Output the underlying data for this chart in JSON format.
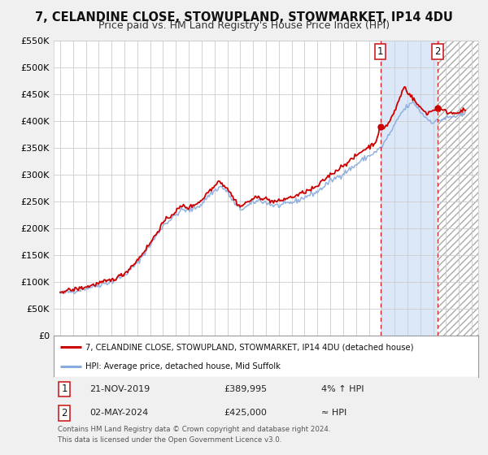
{
  "title": "7, CELANDINE CLOSE, STOWUPLAND, STOWMARKET, IP14 4DU",
  "subtitle": "Price paid vs. HM Land Registry's House Price Index (HPI)",
  "ylim": [
    0,
    550000
  ],
  "xlim_start": 1994.5,
  "xlim_end": 2027.5,
  "yticks": [
    0,
    50000,
    100000,
    150000,
    200000,
    250000,
    300000,
    350000,
    400000,
    450000,
    500000,
    550000
  ],
  "ytick_labels": [
    "£0",
    "£50K",
    "£100K",
    "£150K",
    "£200K",
    "£250K",
    "£300K",
    "£350K",
    "£400K",
    "£450K",
    "£500K",
    "£550K"
  ],
  "bg_color": "#f0f0f0",
  "plot_bg_color": "#ffffff",
  "grid_color": "#cccccc",
  "red_line_color": "#cc0000",
  "blue_line_color": "#88aadd",
  "shade_color": "#dce8f8",
  "hatch_color": "#cccccc",
  "vline1_x": 2019.9,
  "vline2_x": 2024.35,
  "marker1_y": 389995,
  "marker2_y": 425000,
  "legend_line1": "7, CELANDINE CLOSE, STOWUPLAND, STOWMARKET, IP14 4DU (detached house)",
  "legend_line2": "HPI: Average price, detached house, Mid Suffolk",
  "table_row1": [
    "1",
    "21-NOV-2019",
    "£389,995",
    "4% ↑ HPI"
  ],
  "table_row2": [
    "2",
    "02-MAY-2024",
    "£425,000",
    "≈ HPI"
  ],
  "footer": "Contains HM Land Registry data © Crown copyright and database right 2024.\nThis data is licensed under the Open Government Licence v3.0.",
  "title_fontsize": 10.5,
  "subtitle_fontsize": 9
}
